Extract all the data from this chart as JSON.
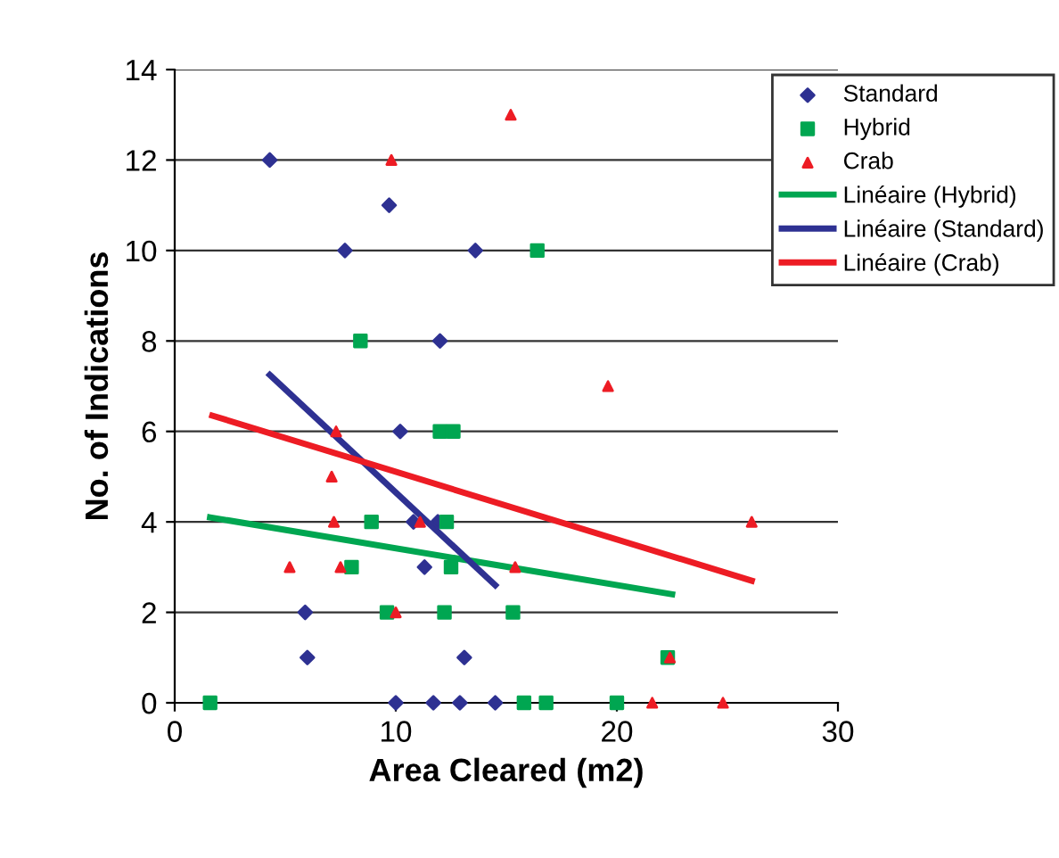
{
  "chart_data": {
    "type": "scatter",
    "xlabel": "Area Cleared (m2)",
    "ylabel": "No. of Indications",
    "xlim": [
      0,
      30
    ],
    "xticks": [
      0,
      10,
      20,
      30
    ],
    "ylim": [
      0,
      14
    ],
    "yticks": [
      0,
      2,
      4,
      6,
      8,
      10,
      12,
      14
    ],
    "grid": "y",
    "legend": "right",
    "series": [
      {
        "name": "Standard",
        "color": "#2e3192",
        "marker": "diamond",
        "x": [
          4.3,
          9.7,
          7.7,
          13.6,
          12.0,
          10.2,
          10.8,
          11.9,
          11.3,
          5.9,
          6.0,
          13.1,
          10.0,
          11.7,
          12.9,
          14.5
        ],
        "values": [
          12,
          11,
          10,
          10,
          8,
          6,
          4,
          4,
          3,
          2,
          1,
          1,
          0,
          0,
          0,
          0
        ]
      },
      {
        "name": "Hybrid",
        "color": "#00a651",
        "marker": "square",
        "x": [
          8.4,
          16.4,
          12.0,
          12.6,
          8.9,
          12.3,
          8.0,
          12.5,
          9.6,
          12.2,
          15.3,
          1.6,
          15.8,
          16.8,
          20.0,
          22.3
        ],
        "values": [
          8,
          10,
          6,
          6,
          4,
          4,
          3,
          3,
          2,
          2,
          2,
          0,
          0,
          0,
          0,
          1
        ]
      },
      {
        "name": "Crab",
        "color": "#ed1c24",
        "marker": "triangle",
        "x": [
          9.8,
          15.2,
          19.6,
          7.3,
          7.1,
          7.2,
          11.1,
          26.1,
          5.2,
          7.5,
          15.4,
          10.0,
          22.4,
          21.6,
          24.8
        ],
        "values": [
          12,
          13,
          7,
          6,
          5,
          4,
          4,
          4,
          3,
          3,
          3,
          2,
          1,
          0,
          0
        ]
      },
      {
        "name": "Linéaire (Hybrid)",
        "type": "line",
        "color": "#00a651",
        "x": [
          1.6,
          22.5
        ],
        "values": [
          4.1,
          2.4
        ]
      },
      {
        "name": "Linéaire (Standard)",
        "type": "line",
        "color": "#2e3192",
        "x": [
          4.3,
          14.5
        ],
        "values": [
          7.25,
          2.6
        ]
      },
      {
        "name": "Linéaire (Crab)",
        "type": "line",
        "color": "#ed1c24",
        "x": [
          1.7,
          26.1
        ],
        "values": [
          6.35,
          2.7
        ]
      }
    ]
  }
}
